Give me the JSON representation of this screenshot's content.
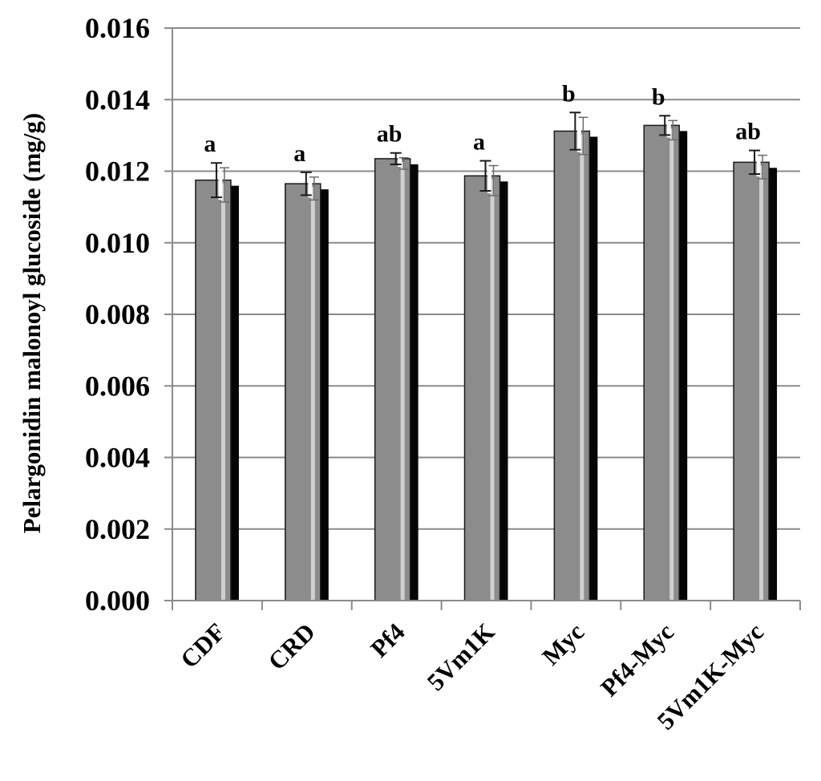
{
  "chart_data": {
    "type": "bar",
    "title": "",
    "xlabel": "",
    "ylabel": "Pelargonidin malonoyl glucoside (mg/g)",
    "ylim": [
      0,
      0.016
    ],
    "y_ticks": [
      "0.000",
      "0.002",
      "0.004",
      "0.006",
      "0.008",
      "0.010",
      "0.012",
      "0.014",
      "0.016"
    ],
    "grid": "horizontal",
    "style": "3d-shadow",
    "bar_color": "#8c8c8c",
    "categories": [
      "CDF",
      "CRD",
      "Pf4",
      "5Vm1K",
      "Myc",
      "Pf4-Myc",
      "5Vm1K-Myc"
    ],
    "values": [
      0.01175,
      0.01165,
      0.01235,
      0.01187,
      0.01312,
      0.01328,
      0.01225
    ],
    "errors": [
      0.00048,
      0.00032,
      0.00016,
      0.00042,
      0.00052,
      0.00027,
      0.00033
    ],
    "significance": [
      "a",
      "a",
      "ab",
      "a",
      "b",
      "b",
      "ab"
    ]
  }
}
